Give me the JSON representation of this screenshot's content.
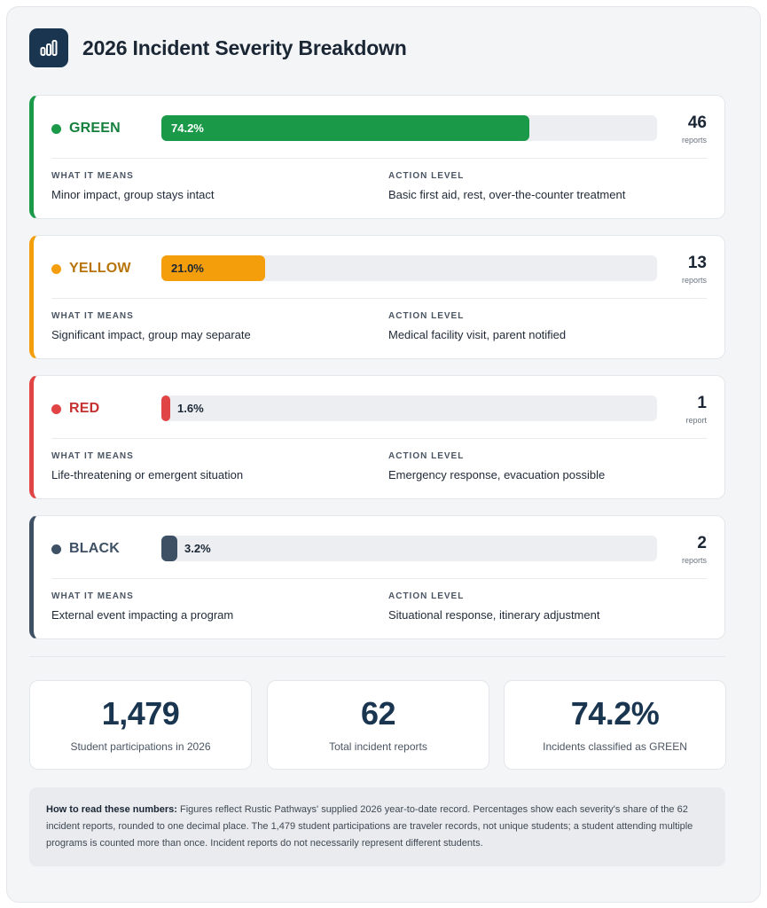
{
  "title": "2026 Incident Severity Breakdown",
  "header_icon": "bar-chart-icon",
  "section_labels": {
    "meaning": "WHAT IT MEANS",
    "action": "ACTION LEVEL"
  },
  "levels": [
    {
      "name": "GREEN",
      "share_percent": 74.2,
      "pct_label": "74.2%",
      "count": "46",
      "unit": "reports",
      "meaning": "Minor impact, group stays intact",
      "action": "Basic first aid, rest, over-the-counter treatment",
      "color": "#1a9a49",
      "text_color": "#15803d"
    },
    {
      "name": "YELLOW",
      "share_percent": 21.0,
      "pct_label": "21.0%",
      "count": "13",
      "unit": "reports",
      "meaning": "Significant impact, group may separate",
      "action": "Medical facility visit, parent notified",
      "color": "#f59e0b",
      "text_color": "#b7740a"
    },
    {
      "name": "RED",
      "share_percent": 1.6,
      "pct_label": "1.6%",
      "count": "1",
      "unit": "report",
      "meaning": "Life-threatening or emergent situation",
      "action": "Emergency response, evacuation possible",
      "color": "#e04444",
      "text_color": "#c53030"
    },
    {
      "name": "BLACK",
      "share_percent": 3.2,
      "pct_label": "3.2%",
      "count": "2",
      "unit": "reports",
      "meaning": "External event impacting a program",
      "action": "Situational response, itinerary adjustment",
      "color": "#3d5064",
      "text_color": "#3d5064"
    }
  ],
  "stats": [
    {
      "value": "1,479",
      "label": "Student participations in 2026"
    },
    {
      "value": "62",
      "label": "Total incident reports"
    },
    {
      "value": "74.2%",
      "label": "Incidents classified as GREEN"
    }
  ],
  "note": {
    "lead": "How to read these numbers:",
    "text": " Figures reflect Rustic Pathways' supplied 2026 year-to-date record. Percentages show each severity's share of the 62 incident reports, rounded to one decimal place. The 1,479 student participations are traveler records, not unique students; a student attending multiple programs is counted more than once. Incident reports do not necessarily represent different students."
  }
}
